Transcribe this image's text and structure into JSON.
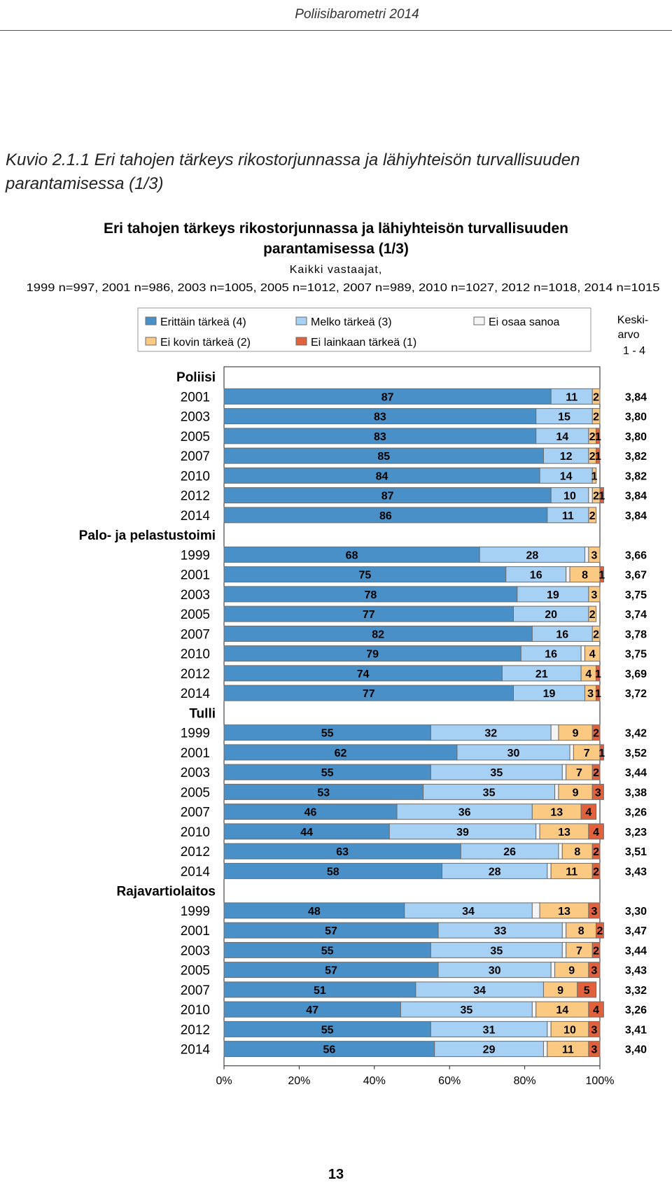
{
  "page": {
    "header": "Poliisibarometri 2014",
    "caption": "Kuvio 2.1.1 Eri tahojen tärkeys rikostorjunnassa ja lähiyhteisön turvallisuuden parantamisessa (1/3)",
    "page_number": "13"
  },
  "colors": {
    "very_important": "#4a90c8",
    "quite_important": "#a6d0f4",
    "dont_know": "#f4f4f4",
    "not_very_important": "#fcc983",
    "not_at_all": "#e0613b",
    "border": "#6b6b6b"
  },
  "chart_data": {
    "type": "bar",
    "orientation": "horizontal",
    "stacked": true,
    "title_line1": "Eri tahojen tärkeys rikostorjunnassa ja lähiyhteisön turvallisuuden",
    "title_line2": "parantamisessa (1/3)",
    "subtitle_line1": "Kaikki vastaajat,",
    "subtitle_line2": "1999 n=997, 2001 n=986, 2003 n=1005, 2005 n=1012, 2007 n=989, 2010 n=1027, 2012 n=1018, 2014 n=1015",
    "mean_header": [
      "Keski-",
      "arvo",
      "1 - 4"
    ],
    "x_ticks": [
      "0%",
      "20%",
      "40%",
      "60%",
      "80%",
      "100%"
    ],
    "xlim": [
      0,
      100
    ],
    "legend_position": "top",
    "legend": [
      {
        "key": "very_important",
        "label": "Erittäin tärkeä (4)"
      },
      {
        "key": "quite_important",
        "label": "Melko tärkeä (3)"
      },
      {
        "key": "dont_know",
        "label": "Ei osaa sanoa"
      },
      {
        "key": "not_very_important",
        "label": "Ei kovin tärkeä (2)"
      },
      {
        "key": "not_at_all",
        "label": "Ei lainkaan tärkeä (1)"
      }
    ],
    "groups": [
      {
        "name": "Poliisi",
        "rows": [
          {
            "year": "2001",
            "values": [
              87,
              11,
              0,
              2,
              0
            ],
            "mean": "3,84"
          },
          {
            "year": "2003",
            "values": [
              83,
              15,
              0,
              2,
              0
            ],
            "mean": "3,80"
          },
          {
            "year": "2005",
            "values": [
              83,
              14,
              0,
              2,
              1
            ],
            "mean": "3,80"
          },
          {
            "year": "2007",
            "values": [
              85,
              12,
              0,
              2,
              1
            ],
            "mean": "3,82"
          },
          {
            "year": "2010",
            "values": [
              84,
              14,
              0,
              1,
              0
            ],
            "mean": "3,82"
          },
          {
            "year": "2012",
            "values": [
              87,
              10,
              1,
              2,
              1
            ],
            "mean": "3,84"
          },
          {
            "year": "2014",
            "values": [
              86,
              11,
              0,
              2,
              0
            ],
            "mean": "3,84"
          }
        ]
      },
      {
        "name": "Palo- ja pelastustoimi",
        "rows": [
          {
            "year": "1999",
            "values": [
              68,
              28,
              1,
              3,
              0
            ],
            "mean": "3,66"
          },
          {
            "year": "2001",
            "values": [
              75,
              16,
              1,
              8,
              1
            ],
            "mean": "3,67"
          },
          {
            "year": "2003",
            "values": [
              78,
              19,
              0,
              3,
              0
            ],
            "mean": "3,75"
          },
          {
            "year": "2005",
            "values": [
              77,
              20,
              0,
              2,
              0
            ],
            "mean": "3,74"
          },
          {
            "year": "2007",
            "values": [
              82,
              16,
              0,
              2,
              0
            ],
            "mean": "3,78"
          },
          {
            "year": "2010",
            "values": [
              79,
              16,
              1,
              4,
              0
            ],
            "mean": "3,75"
          },
          {
            "year": "2012",
            "values": [
              74,
              21,
              0,
              4,
              1
            ],
            "mean": "3,69"
          },
          {
            "year": "2014",
            "values": [
              77,
              19,
              0,
              3,
              1
            ],
            "mean": "3,72"
          }
        ]
      },
      {
        "name": "Tulli",
        "rows": [
          {
            "year": "1999",
            "values": [
              55,
              32,
              2,
              9,
              2
            ],
            "mean": "3,42"
          },
          {
            "year": "2001",
            "values": [
              62,
              30,
              1,
              7,
              1
            ],
            "mean": "3,52"
          },
          {
            "year": "2003",
            "values": [
              55,
              35,
              1,
              7,
              2
            ],
            "mean": "3,44"
          },
          {
            "year": "2005",
            "values": [
              53,
              35,
              1,
              9,
              3
            ],
            "mean": "3,38"
          },
          {
            "year": "2007",
            "values": [
              46,
              36,
              0,
              13,
              4
            ],
            "mean": "3,26"
          },
          {
            "year": "2010",
            "values": [
              44,
              39,
              1,
              13,
              4
            ],
            "mean": "3,23"
          },
          {
            "year": "2012",
            "values": [
              63,
              26,
              1,
              8,
              2
            ],
            "mean": "3,51"
          },
          {
            "year": "2014",
            "values": [
              58,
              28,
              1,
              11,
              2
            ],
            "mean": "3,43"
          }
        ]
      },
      {
        "name": "Rajavartiolaitos",
        "rows": [
          {
            "year": "1999",
            "values": [
              48,
              34,
              2,
              13,
              3
            ],
            "mean": "3,30"
          },
          {
            "year": "2001",
            "values": [
              57,
              33,
              1,
              8,
              2
            ],
            "mean": "3,47"
          },
          {
            "year": "2003",
            "values": [
              55,
              35,
              1,
              7,
              2
            ],
            "mean": "3,44"
          },
          {
            "year": "2005",
            "values": [
              57,
              30,
              1,
              9,
              3
            ],
            "mean": "3,43"
          },
          {
            "year": "2007",
            "values": [
              51,
              34,
              0,
              9,
              5
            ],
            "mean": "3,32"
          },
          {
            "year": "2010",
            "values": [
              47,
              35,
              1,
              14,
              4
            ],
            "mean": "3,26"
          },
          {
            "year": "2012",
            "values": [
              55,
              31,
              1,
              10,
              3
            ],
            "mean": "3,41"
          },
          {
            "year": "2014",
            "values": [
              56,
              29,
              1,
              11,
              3
            ],
            "mean": "3,40"
          }
        ]
      }
    ]
  }
}
